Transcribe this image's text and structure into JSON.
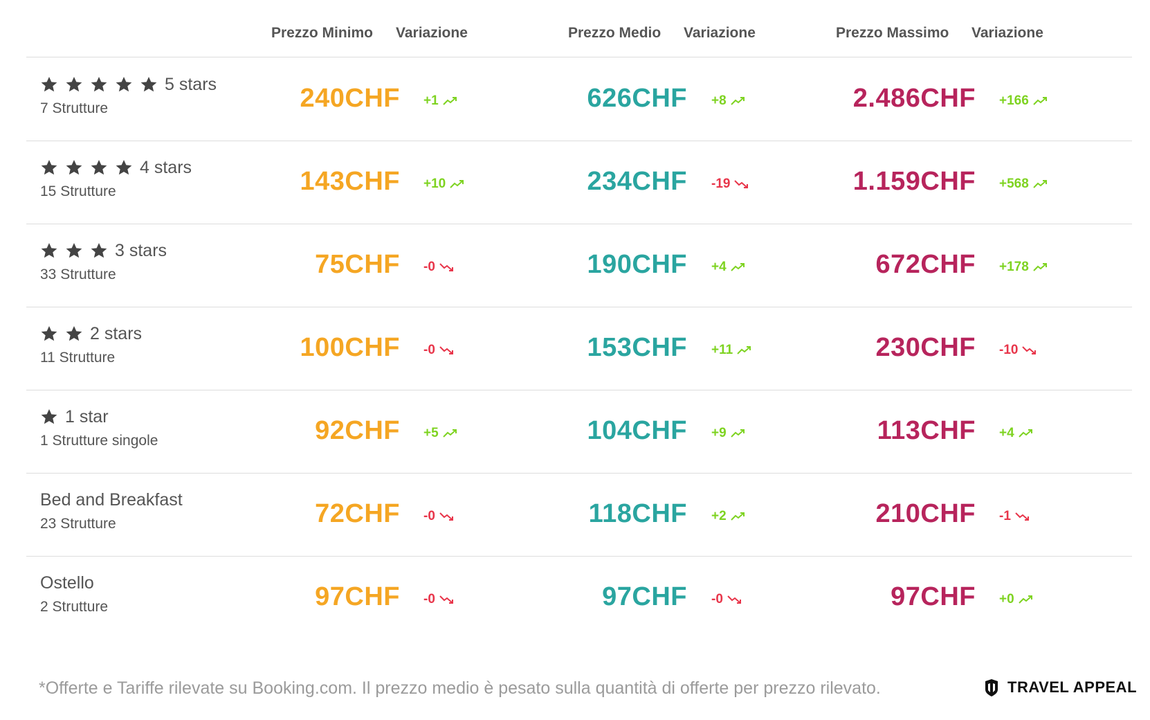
{
  "colors": {
    "min_price": "#f5a623",
    "avg_price": "#2aa5a0",
    "max_price": "#b7245c",
    "up": "#7ed321",
    "down": "#e8354a",
    "star": "#444444"
  },
  "header": {
    "min_price": "Prezzo Minimo",
    "min_change": "Variazione",
    "avg_price": "Prezzo Medio",
    "avg_change": "Variazione",
    "max_price": "Prezzo Massimo",
    "max_change": "Variazione"
  },
  "rows": [
    {
      "stars": 5,
      "label": "5 stars",
      "count": "7 Strutture",
      "min": "240CHF",
      "min_change": "+1",
      "min_dir": "up",
      "avg": "626CHF",
      "avg_change": "+8",
      "avg_dir": "up",
      "max": "2.486CHF",
      "max_change": "+166",
      "max_dir": "up"
    },
    {
      "stars": 4,
      "label": "4 stars",
      "count": "15 Strutture",
      "min": "143CHF",
      "min_change": "+10",
      "min_dir": "up",
      "avg": "234CHF",
      "avg_change": "-19",
      "avg_dir": "down",
      "max": "1.159CHF",
      "max_change": "+568",
      "max_dir": "up"
    },
    {
      "stars": 3,
      "label": "3 stars",
      "count": "33 Strutture",
      "min": "75CHF",
      "min_change": "-0",
      "min_dir": "down",
      "avg": "190CHF",
      "avg_change": "+4",
      "avg_dir": "up",
      "max": "672CHF",
      "max_change": "+178",
      "max_dir": "up"
    },
    {
      "stars": 2,
      "label": "2 stars",
      "count": "11 Strutture",
      "min": "100CHF",
      "min_change": "-0",
      "min_dir": "down",
      "avg": "153CHF",
      "avg_change": "+11",
      "avg_dir": "up",
      "max": "230CHF",
      "max_change": "-10",
      "max_dir": "down"
    },
    {
      "stars": 1,
      "label": "1 star",
      "count": "1 Strutture singole",
      "min": "92CHF",
      "min_change": "+5",
      "min_dir": "up",
      "avg": "104CHF",
      "avg_change": "+9",
      "avg_dir": "up",
      "max": "113CHF",
      "max_change": "+4",
      "max_dir": "up"
    },
    {
      "stars": 0,
      "label": "Bed and Breakfast",
      "count": "23 Strutture",
      "min": "72CHF",
      "min_change": "-0",
      "min_dir": "down",
      "avg": "118CHF",
      "avg_change": "+2",
      "avg_dir": "up",
      "max": "210CHF",
      "max_change": "-1",
      "max_dir": "down"
    },
    {
      "stars": 0,
      "label": "Ostello",
      "count": "2 Strutture",
      "min": "97CHF",
      "min_change": "-0",
      "min_dir": "down",
      "avg": "97CHF",
      "avg_change": "-0",
      "avg_dir": "down",
      "max": "97CHF",
      "max_change": "+0",
      "max_dir": "up"
    }
  ],
  "footer": {
    "note": "*Offerte e Tariffe rilevate su Booking.com. Il prezzo medio è pesato sulla quantità di offerte per prezzo rilevato.",
    "brand": "TRAVEL APPEAL",
    "brand_icon": "travel-appeal-logo-icon"
  }
}
